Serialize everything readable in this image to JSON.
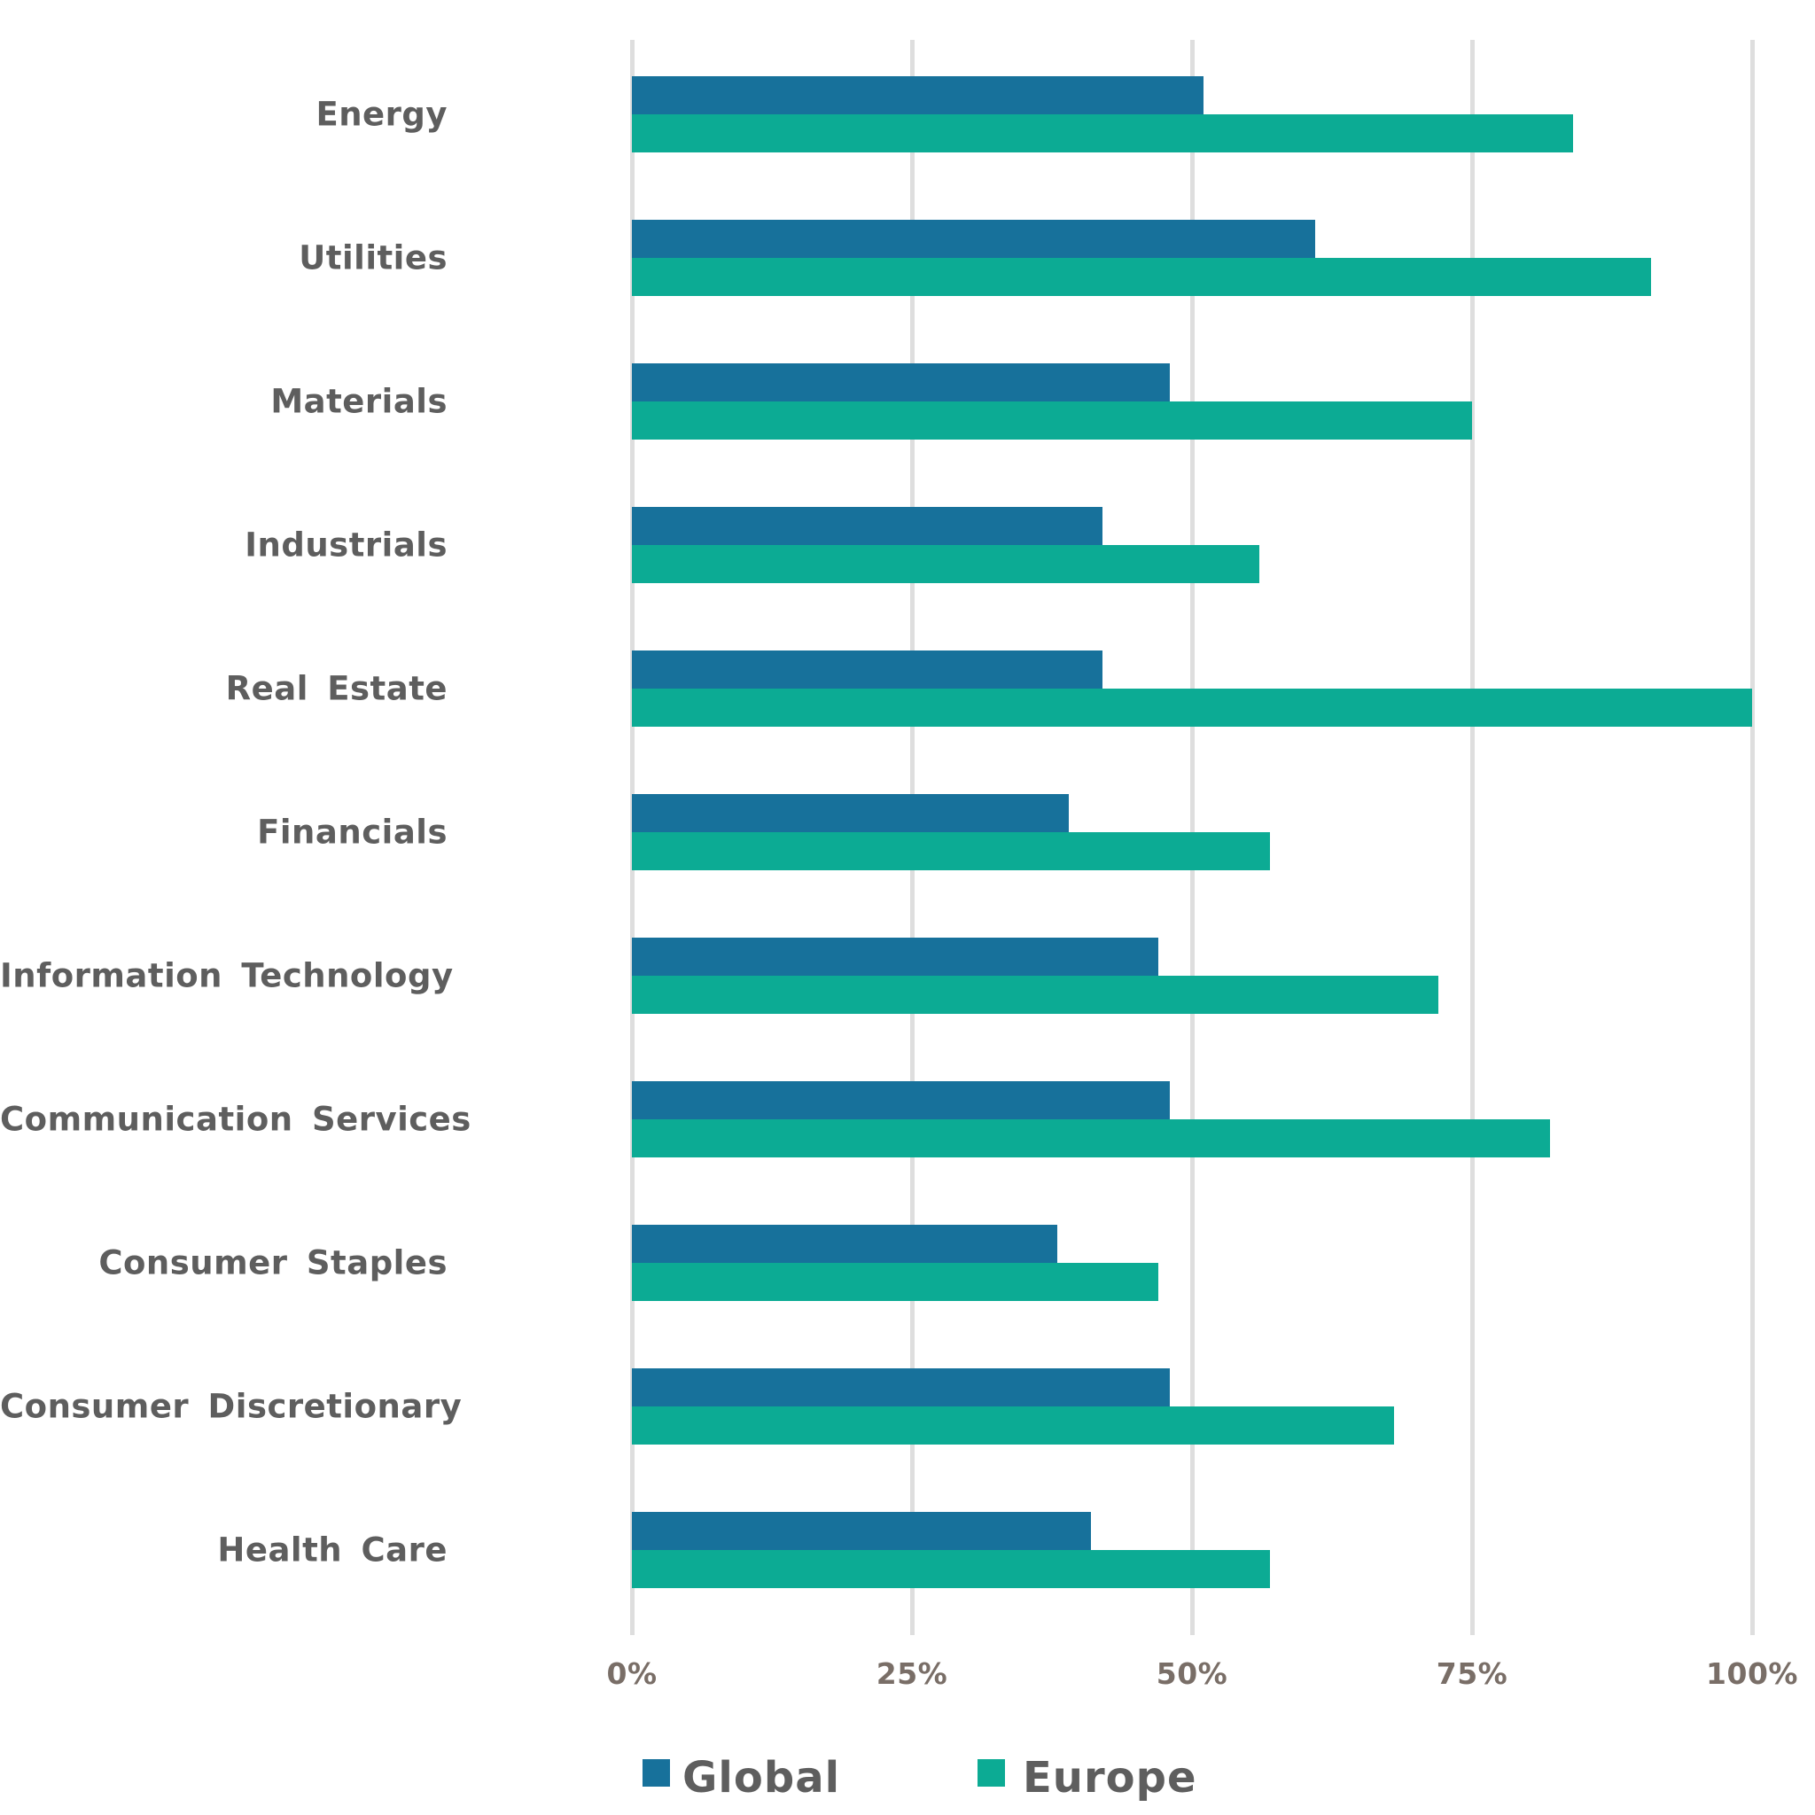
{
  "chart_data": {
    "type": "bar",
    "orientation": "horizontal",
    "title": "",
    "categories": [
      "Energy",
      "Utilities",
      "Materials",
      "Industrials",
      "Real Estate",
      "Financials",
      "Information Technology",
      "Communication Services",
      "Consumer Staples",
      "Consumer Discretionary",
      "Health Care"
    ],
    "series": [
      {
        "name": "Global",
        "color": "#17719B",
        "values": [
          51,
          61,
          48,
          42,
          42,
          39,
          47,
          48,
          38,
          48,
          41
        ]
      },
      {
        "name": "Europe",
        "color": "#0CAB94",
        "values": [
          84,
          91,
          75,
          56,
          100,
          57,
          72,
          82,
          47,
          68,
          57
        ]
      }
    ],
    "xlabel": "",
    "ylabel": "",
    "x_axis": {
      "min": 0,
      "max": 100,
      "tick_values": [
        0,
        25,
        50,
        75,
        100
      ],
      "tick_labels": [
        "0%",
        "25%",
        "50%",
        "75%",
        "100%"
      ]
    },
    "grid": "vertical-only",
    "gridline_color": "#DEDEDE",
    "legend_position": "bottom"
  },
  "legend": {
    "items": [
      {
        "label": "Global",
        "color": "#17719B"
      },
      {
        "label": "Europe",
        "color": "#0CAB94"
      }
    ]
  },
  "text_colors": {
    "category_label": "#5E5E5E",
    "tick_label": "#796E67",
    "legend_label": "#5E5E5E"
  }
}
